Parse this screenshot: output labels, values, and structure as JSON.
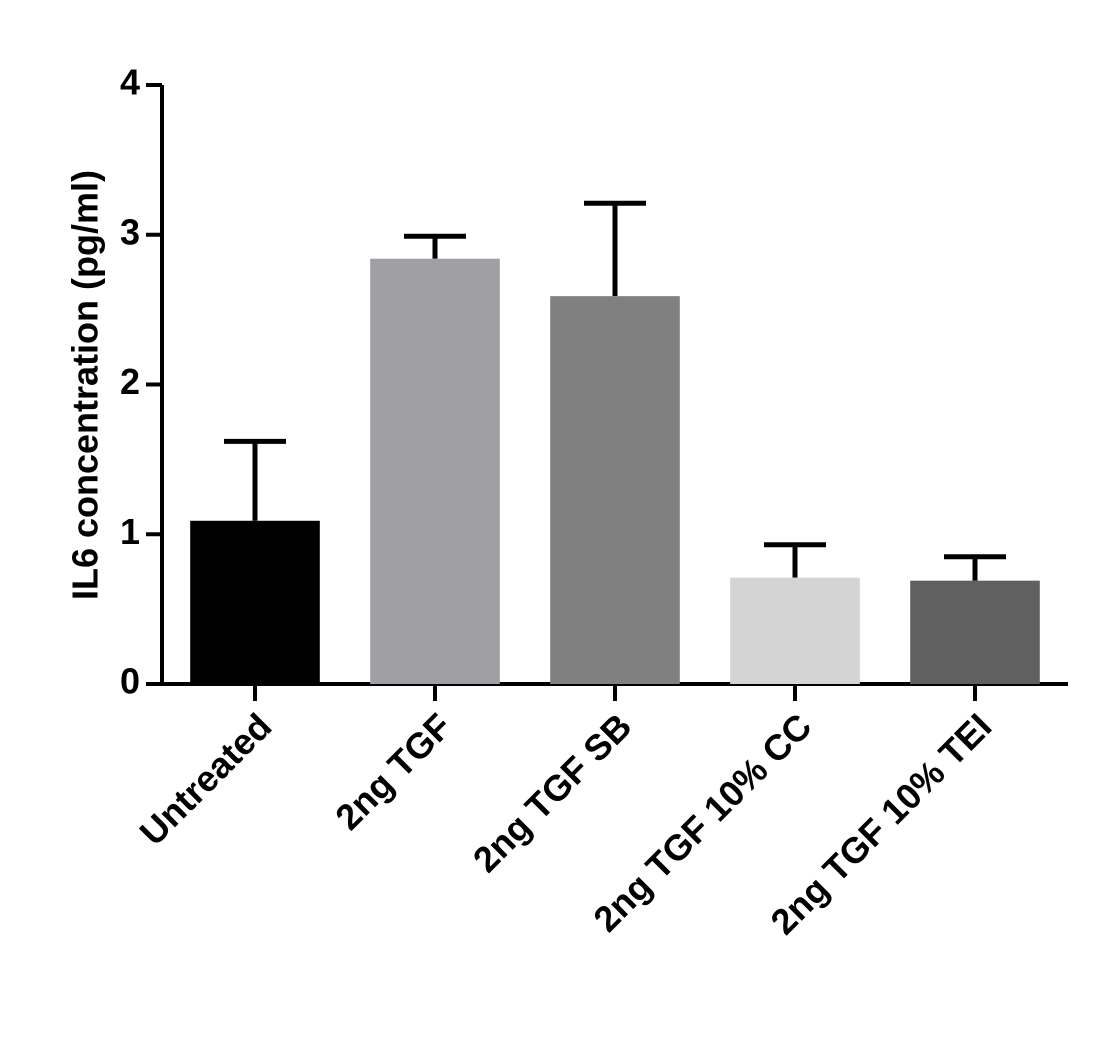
{
  "chart_data": {
    "type": "bar",
    "y_label": "IL6 concentration (pg/ml)",
    "categories": [
      "Untreated",
      "2ng TGF",
      "2ng TGF SB",
      "2ng TGF 10% CC",
      "2ng TGF 10% TEI"
    ],
    "values": [
      1.09,
      2.84,
      2.59,
      0.71,
      0.69
    ],
    "errors": [
      0.53,
      0.15,
      0.62,
      0.22,
      0.16
    ],
    "colors": [
      "#000000",
      "#a0a0a4",
      "#808080",
      "#d4d4d4",
      "#606060"
    ],
    "ylim": [
      0,
      4
    ],
    "yticks": [
      0,
      1,
      2,
      3,
      4
    ]
  }
}
